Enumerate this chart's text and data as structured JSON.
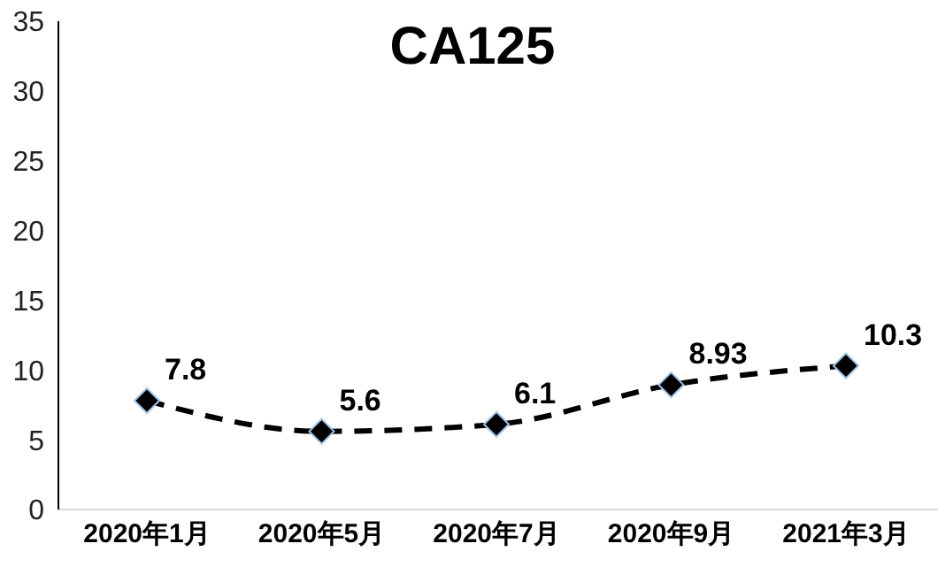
{
  "chart_data": {
    "type": "line",
    "title": "CA125",
    "categories": [
      "2020年1月",
      "2020年5月",
      "2020年7月",
      "2020年9月",
      "2021年3月"
    ],
    "series": [
      {
        "color": "#000000",
        "values": [
          7.8,
          5.6,
          6.1,
          8.93,
          10.3
        ]
      }
    ],
    "ylim": [
      0,
      35
    ],
    "yticks": [
      0,
      5,
      10,
      15,
      20,
      25,
      30,
      35
    ],
    "grid": false,
    "legend": false,
    "marker": "diamond",
    "line_style": "dashed",
    "data_labels": true
  }
}
